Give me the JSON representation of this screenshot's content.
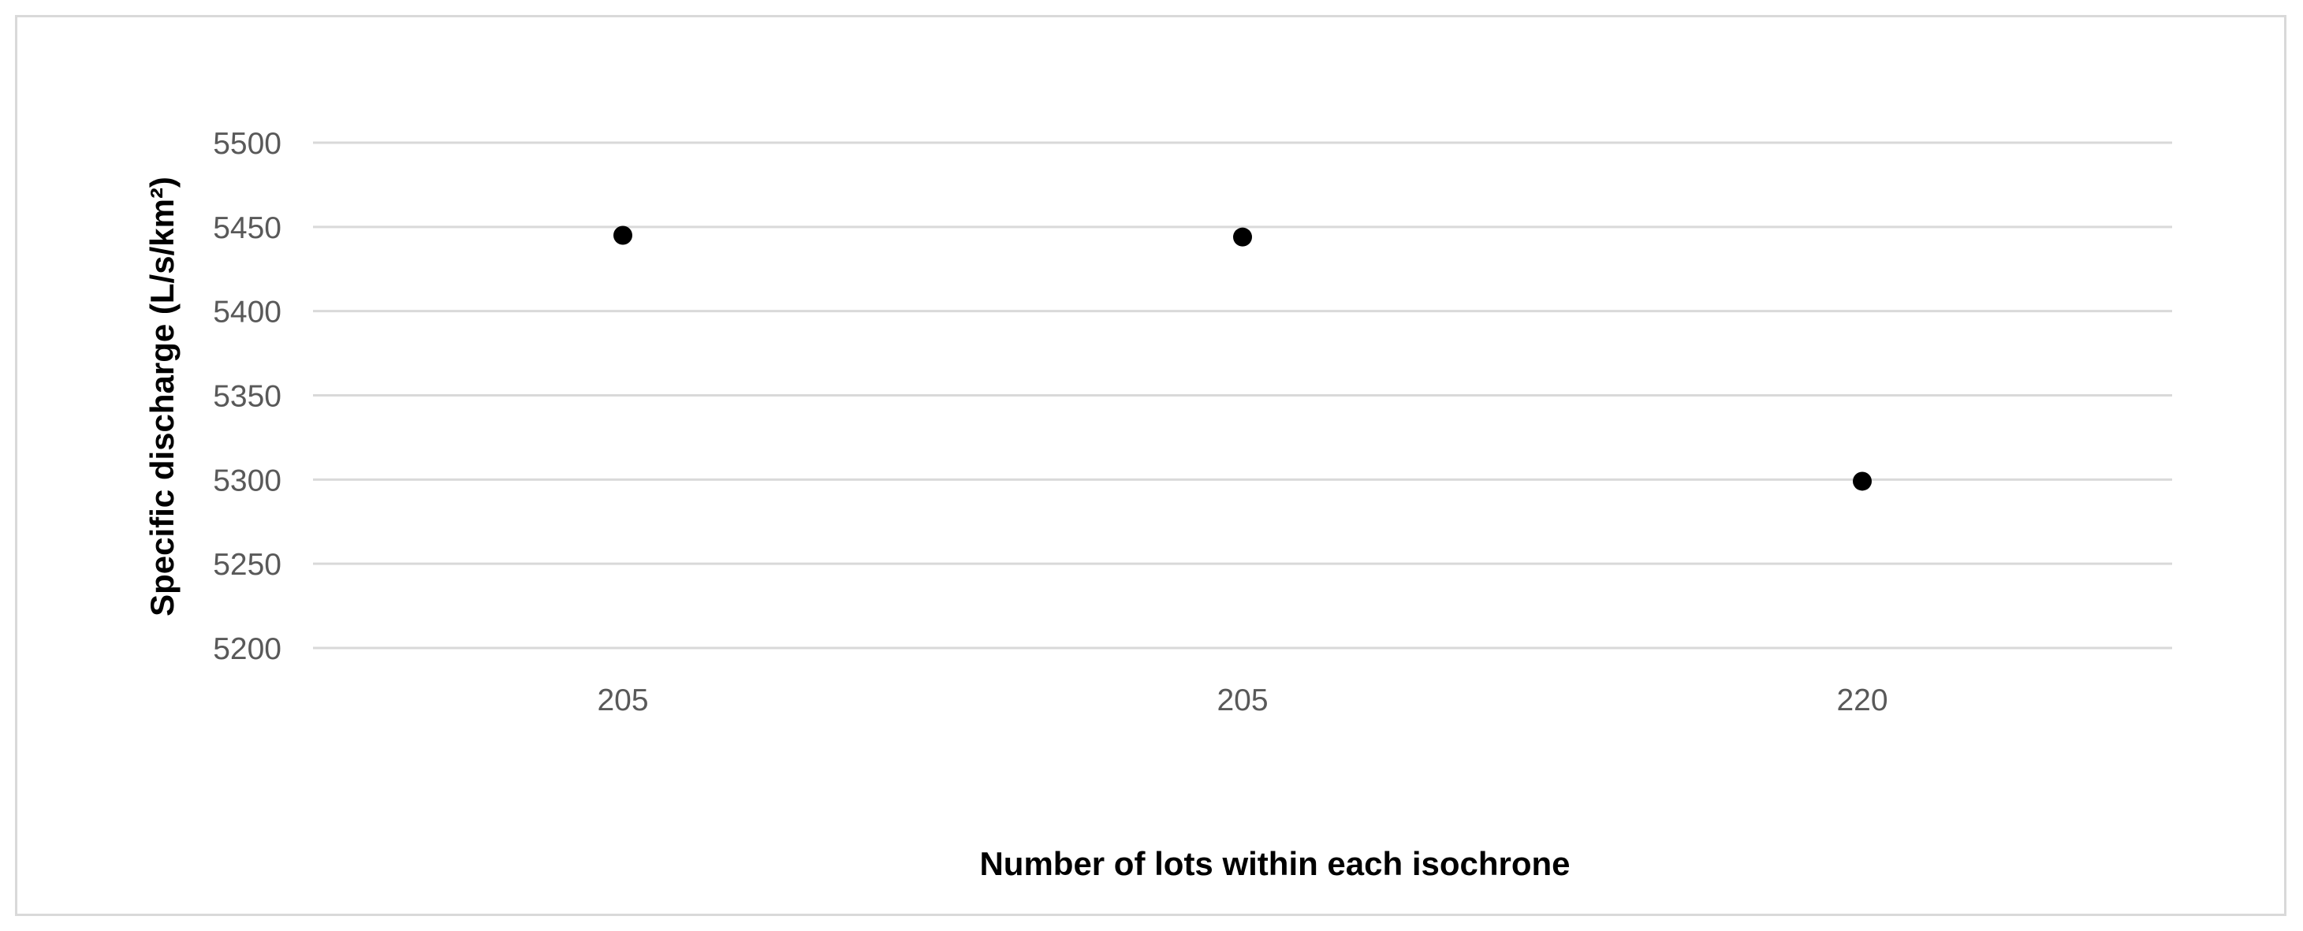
{
  "colors": {
    "gridline": "#d9d9d9",
    "tick_text": "#595959",
    "marker": "#000000",
    "frame": "#d9d9d9"
  },
  "chart_data": {
    "type": "scatter",
    "title": "",
    "xlabel": "Number of lots within each isochrone",
    "ylabel": "Specific discharge (L/s/km²)",
    "categories": [
      "205",
      "205",
      "220"
    ],
    "values": [
      5445,
      5444,
      5299
    ],
    "ylim": [
      5200,
      5500
    ],
    "yticks": [
      5200,
      5250,
      5300,
      5350,
      5400,
      5450,
      5500
    ],
    "grid": "horizontal",
    "legend": "none"
  }
}
